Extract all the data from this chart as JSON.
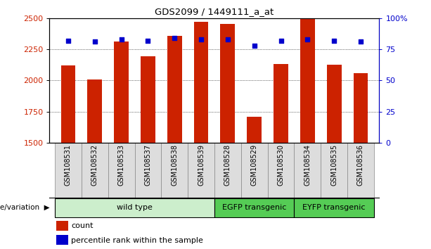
{
  "title": "GDS2099 / 1449111_a_at",
  "samples": [
    "GSM108531",
    "GSM108532",
    "GSM108533",
    "GSM108537",
    "GSM108538",
    "GSM108539",
    "GSM108528",
    "GSM108529",
    "GSM108530",
    "GSM108534",
    "GSM108535",
    "GSM108536"
  ],
  "counts": [
    2120,
    2007,
    2310,
    2195,
    2360,
    2470,
    2455,
    1710,
    2130,
    2495,
    2125,
    2060
  ],
  "percentiles": [
    82,
    81,
    83,
    82,
    84,
    83,
    83,
    78,
    82,
    83,
    82,
    81
  ],
  "ymin": 1500,
  "ymax": 2500,
  "yticks": [
    1500,
    1750,
    2000,
    2250,
    2500
  ],
  "right_yticks": [
    0,
    25,
    50,
    75,
    100
  ],
  "right_ylabels": [
    "0",
    "25",
    "50",
    "75",
    "100%"
  ],
  "bar_color": "#cc2200",
  "dot_color": "#0000cc",
  "groups": [
    {
      "label": "wild type",
      "start": 0,
      "end": 6,
      "color": "#cceecc"
    },
    {
      "label": "EGFP transgenic",
      "start": 6,
      "end": 9,
      "color": "#55cc55"
    },
    {
      "label": "EYFP transgenic",
      "start": 9,
      "end": 12,
      "color": "#55cc55"
    }
  ],
  "group_label": "genotype/variation",
  "legend_count_label": "count",
  "legend_pct_label": "percentile rank within the sample",
  "bar_width": 0.55,
  "bg_color": "#ffffff"
}
